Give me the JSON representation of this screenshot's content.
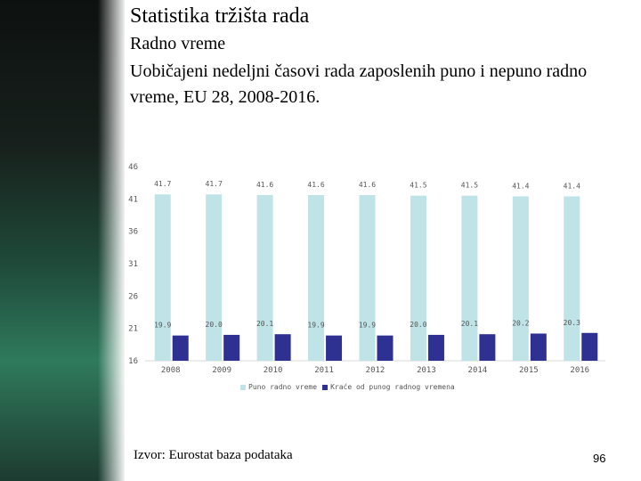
{
  "slide": {
    "title": "Statistika tržišta rada",
    "subtitle": "Radno vreme",
    "description": "Uobičajeni nedeljni časovi rada zaposlenih puno i nepuno radno vreme, EU 28, 2008-2016.",
    "source": "Izvor: Eurostat baza podataka",
    "page_number": "96"
  },
  "colors": {
    "full_time": "#bfe3e6",
    "part_time": "#2e3192",
    "axis_text": "#555555"
  },
  "chart_data": {
    "type": "bar",
    "categories": [
      "2008",
      "2009",
      "2010",
      "2011",
      "2012",
      "2013",
      "2014",
      "2015",
      "2016"
    ],
    "series": [
      {
        "name": "Puno radno vreme",
        "values": [
          41.7,
          41.7,
          41.6,
          41.6,
          41.6,
          41.5,
          41.5,
          41.4,
          41.4
        ],
        "labels": [
          "41.7",
          "41.7",
          "41.6",
          "41.6",
          "41.6",
          "41.5",
          "41.5",
          "41.4",
          "41.4"
        ]
      },
      {
        "name": "Kraće od punog radnog vremena",
        "values": [
          19.9,
          20.0,
          20.1,
          19.9,
          19.9,
          20.0,
          20.1,
          20.2,
          20.3
        ],
        "labels": [
          "19.9",
          "20.0",
          "20.1",
          "19.9",
          "19.9",
          "20.0",
          "20.1",
          "20.2",
          "20.3"
        ]
      }
    ],
    "yticks": [
      "46",
      "41",
      "36",
      "31",
      "26",
      "21",
      "16"
    ],
    "ylim": [
      16,
      46
    ],
    "legend_position": "bottom",
    "grid": false
  }
}
